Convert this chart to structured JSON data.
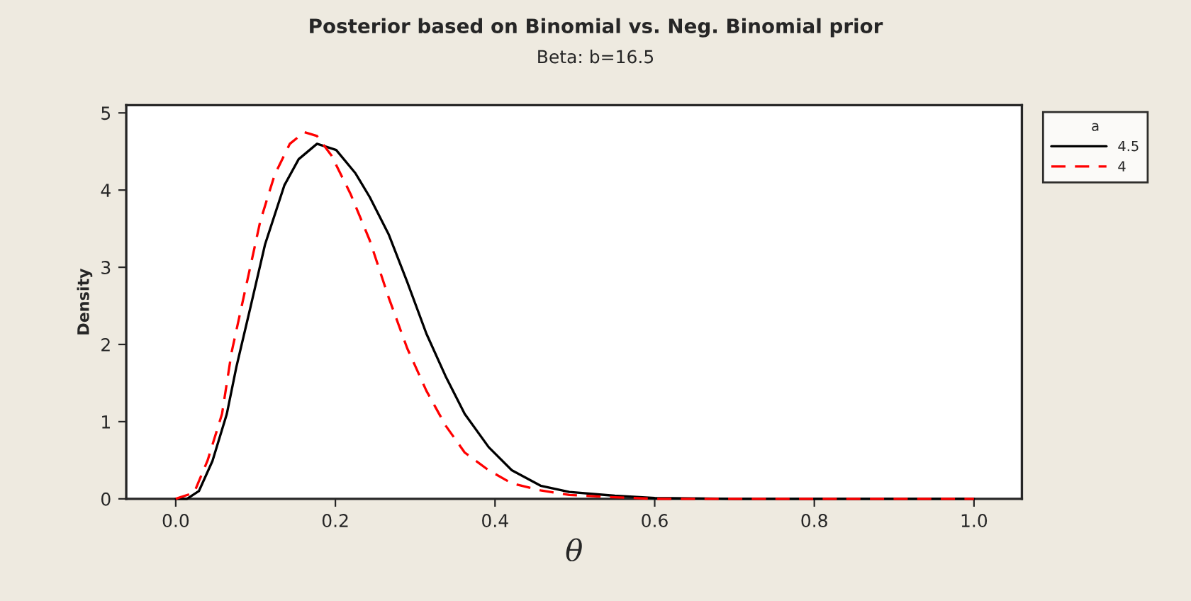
{
  "chart_data": {
    "type": "line",
    "title": "Posterior based on Binomial vs. Neg. Binomial prior",
    "subtitle": "Beta: b=16.5",
    "xlabel": "θ",
    "ylabel": "Density",
    "legend_title": "a",
    "legend": "top right",
    "grid": false,
    "xlim": [
      -0.062,
      1.06
    ],
    "ylim": [
      0,
      5.1
    ],
    "xticks": [
      {
        "value": 0,
        "label": "0.0"
      },
      0.2,
      0.4,
      0.6,
      0.8,
      {
        "value": 1,
        "label": "1.0"
      }
    ],
    "yticks": [
      0,
      1,
      2,
      3,
      4,
      5
    ],
    "series": [
      {
        "name": "4.5",
        "color": "#000000",
        "line_style": "solid",
        "x": [
          0,
          0.014,
          0.029,
          0.046,
          0.064,
          0.076,
          0.094,
          0.112,
          0.136,
          0.154,
          0.177,
          0.201,
          0.225,
          0.243,
          0.267,
          0.29,
          0.314,
          0.338,
          0.362,
          0.392,
          0.421,
          0.457,
          0.493,
          0.55,
          0.6,
          0.7,
          0.8,
          0.9,
          1.0
        ],
        "values": [
          0,
          0,
          0.1,
          0.49,
          1.1,
          1.71,
          2.5,
          3.3,
          4.06,
          4.4,
          4.6,
          4.52,
          4.22,
          3.91,
          3.42,
          2.81,
          2.14,
          1.59,
          1.1,
          0.67,
          0.37,
          0.17,
          0.09,
          0.04,
          0.01,
          0,
          0,
          0,
          0
        ]
      },
      {
        "name": "4",
        "color": "#ff0000",
        "line_style": "dashed",
        "x": [
          0,
          0.023,
          0.04,
          0.058,
          0.07,
          0.088,
          0.106,
          0.124,
          0.143,
          0.161,
          0.177,
          0.195,
          0.219,
          0.243,
          0.267,
          0.29,
          0.314,
          0.338,
          0.362,
          0.392,
          0.421,
          0.457,
          0.493,
          0.55,
          0.6,
          0.7,
          0.8,
          0.9,
          1.0
        ],
        "values": [
          0,
          0.08,
          0.5,
          1.1,
          1.9,
          2.75,
          3.6,
          4.2,
          4.6,
          4.75,
          4.7,
          4.45,
          3.95,
          3.35,
          2.6,
          1.95,
          1.4,
          0.95,
          0.6,
          0.37,
          0.2,
          0.11,
          0.05,
          0.02,
          0,
          0,
          0,
          0,
          0
        ]
      }
    ]
  }
}
